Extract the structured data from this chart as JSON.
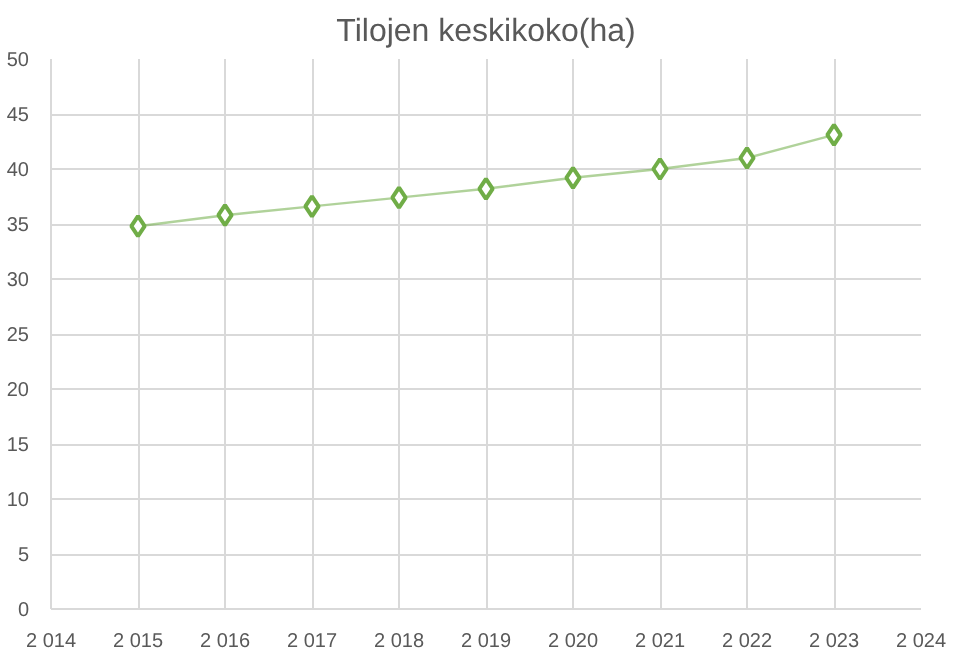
{
  "chart_data": {
    "type": "line",
    "title": "Tilojen keskikoko(ha)",
    "x": [
      2015,
      2016,
      2017,
      2018,
      2019,
      2020,
      2021,
      2022,
      2023
    ],
    "series": [
      {
        "color": "#70ad47",
        "values": [
          34.8,
          35.8,
          36.6,
          37.4,
          38.2,
          39.2,
          40.0,
          41.0,
          43.1
        ]
      }
    ],
    "xlim": [
      2014,
      2024
    ],
    "xticks": [
      {
        "value": 2014,
        "label": "2 014"
      },
      {
        "value": 2015,
        "label": "2 015"
      },
      {
        "value": 2016,
        "label": "2 016"
      },
      {
        "value": 2017,
        "label": "2 017"
      },
      {
        "value": 2018,
        "label": "2 018"
      },
      {
        "value": 2019,
        "label": "2 019"
      },
      {
        "value": 2020,
        "label": "2 020"
      },
      {
        "value": 2021,
        "label": "2 021"
      },
      {
        "value": 2022,
        "label": "2 022"
      },
      {
        "value": 2023,
        "label": "2 023"
      },
      {
        "value": 2024,
        "label": "2 024"
      }
    ],
    "ylim": [
      0,
      50
    ],
    "yticks": [
      0,
      5,
      10,
      15,
      20,
      25,
      30,
      35,
      40,
      45,
      50
    ],
    "grid": true,
    "marker": "diamond",
    "line_style": "solid"
  }
}
